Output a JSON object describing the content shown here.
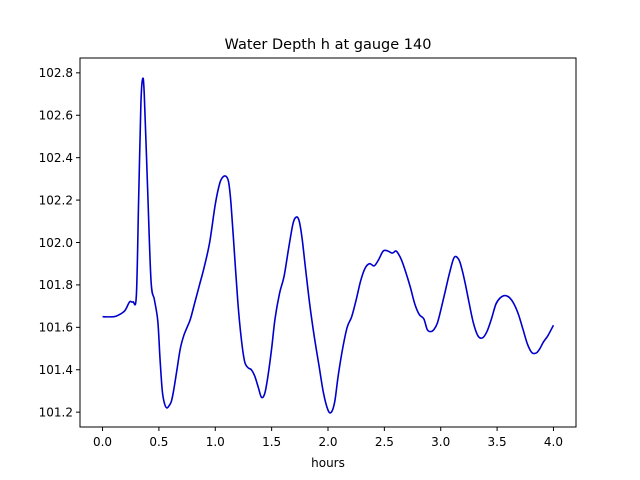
{
  "chart_data": {
    "type": "line",
    "title": "Water Depth h at gauge 140",
    "xlabel": "hours",
    "ylabel": "",
    "xlim": [
      -0.2,
      4.2
    ],
    "ylim": [
      101.13,
      102.87
    ],
    "xticks": [
      0.0,
      0.5,
      1.0,
      1.5,
      2.0,
      2.5,
      3.0,
      3.5,
      4.0
    ],
    "xtick_labels": [
      "0.0",
      "0.5",
      "1.0",
      "1.5",
      "2.0",
      "2.5",
      "3.0",
      "3.5",
      "4.0"
    ],
    "yticks": [
      101.2,
      101.4,
      101.6,
      101.8,
      102.0,
      102.2,
      102.4,
      102.6,
      102.8
    ],
    "ytick_labels": [
      "101.2",
      "101.4",
      "101.6",
      "101.8",
      "102.0",
      "102.2",
      "102.4",
      "102.6",
      "102.8"
    ],
    "grid": false,
    "series": [
      {
        "color": "#0000cc",
        "x": [
          0.0,
          0.1,
          0.15,
          0.2,
          0.24,
          0.27,
          0.3,
          0.32,
          0.34,
          0.355,
          0.37,
          0.4,
          0.43,
          0.46,
          0.49,
          0.51,
          0.53,
          0.55,
          0.57,
          0.59,
          0.61,
          0.63,
          0.66,
          0.69,
          0.72,
          0.75,
          0.78,
          0.82,
          0.86,
          0.9,
          0.95,
          1.0,
          1.04,
          1.07,
          1.1,
          1.12,
          1.14,
          1.17,
          1.2,
          1.23,
          1.26,
          1.29,
          1.32,
          1.35,
          1.38,
          1.41,
          1.44,
          1.47,
          1.5,
          1.53,
          1.57,
          1.61,
          1.65,
          1.69,
          1.72,
          1.745,
          1.77,
          1.8,
          1.84,
          1.88,
          1.92,
          1.96,
          2.0,
          2.03,
          2.06,
          2.09,
          2.13,
          2.17,
          2.21,
          2.25,
          2.29,
          2.33,
          2.37,
          2.41,
          2.45,
          2.49,
          2.53,
          2.57,
          2.6,
          2.62,
          2.65,
          2.69,
          2.73,
          2.77,
          2.81,
          2.85,
          2.88,
          2.91,
          2.94,
          2.97,
          3.0,
          3.04,
          3.08,
          3.12,
          3.16,
          3.19,
          3.22,
          3.25,
          3.29,
          3.33,
          3.37,
          3.41,
          3.45,
          3.49,
          3.53,
          3.57,
          3.61,
          3.65,
          3.69,
          3.73,
          3.77,
          3.81,
          3.85,
          3.88,
          3.91,
          3.95,
          4.0
        ],
        "y": [
          101.65,
          101.65,
          101.66,
          101.68,
          101.72,
          101.72,
          101.75,
          102.2,
          102.65,
          102.77,
          102.7,
          102.25,
          101.82,
          101.73,
          101.63,
          101.45,
          101.3,
          101.24,
          101.22,
          101.23,
          101.25,
          101.3,
          101.4,
          101.5,
          101.56,
          101.6,
          101.64,
          101.72,
          101.8,
          101.88,
          102.0,
          102.18,
          102.28,
          102.31,
          102.31,
          102.28,
          102.18,
          101.95,
          101.72,
          101.55,
          101.44,
          101.41,
          101.4,
          101.37,
          101.32,
          101.27,
          101.29,
          101.38,
          101.5,
          101.64,
          101.76,
          101.84,
          101.97,
          102.09,
          102.12,
          102.1,
          102.02,
          101.88,
          101.7,
          101.55,
          101.42,
          101.29,
          101.21,
          101.2,
          101.25,
          101.37,
          101.5,
          101.6,
          101.65,
          101.73,
          101.82,
          101.88,
          101.9,
          101.89,
          101.92,
          101.96,
          101.96,
          101.95,
          101.96,
          101.95,
          101.92,
          101.86,
          101.79,
          101.71,
          101.66,
          101.64,
          101.59,
          101.58,
          101.59,
          101.62,
          101.68,
          101.77,
          101.86,
          101.93,
          101.92,
          101.87,
          101.8,
          101.72,
          101.62,
          101.56,
          101.55,
          101.58,
          101.64,
          101.71,
          101.74,
          101.75,
          101.74,
          101.71,
          101.66,
          101.59,
          101.52,
          101.48,
          101.48,
          101.5,
          101.53,
          101.56,
          101.61
        ]
      }
    ]
  }
}
